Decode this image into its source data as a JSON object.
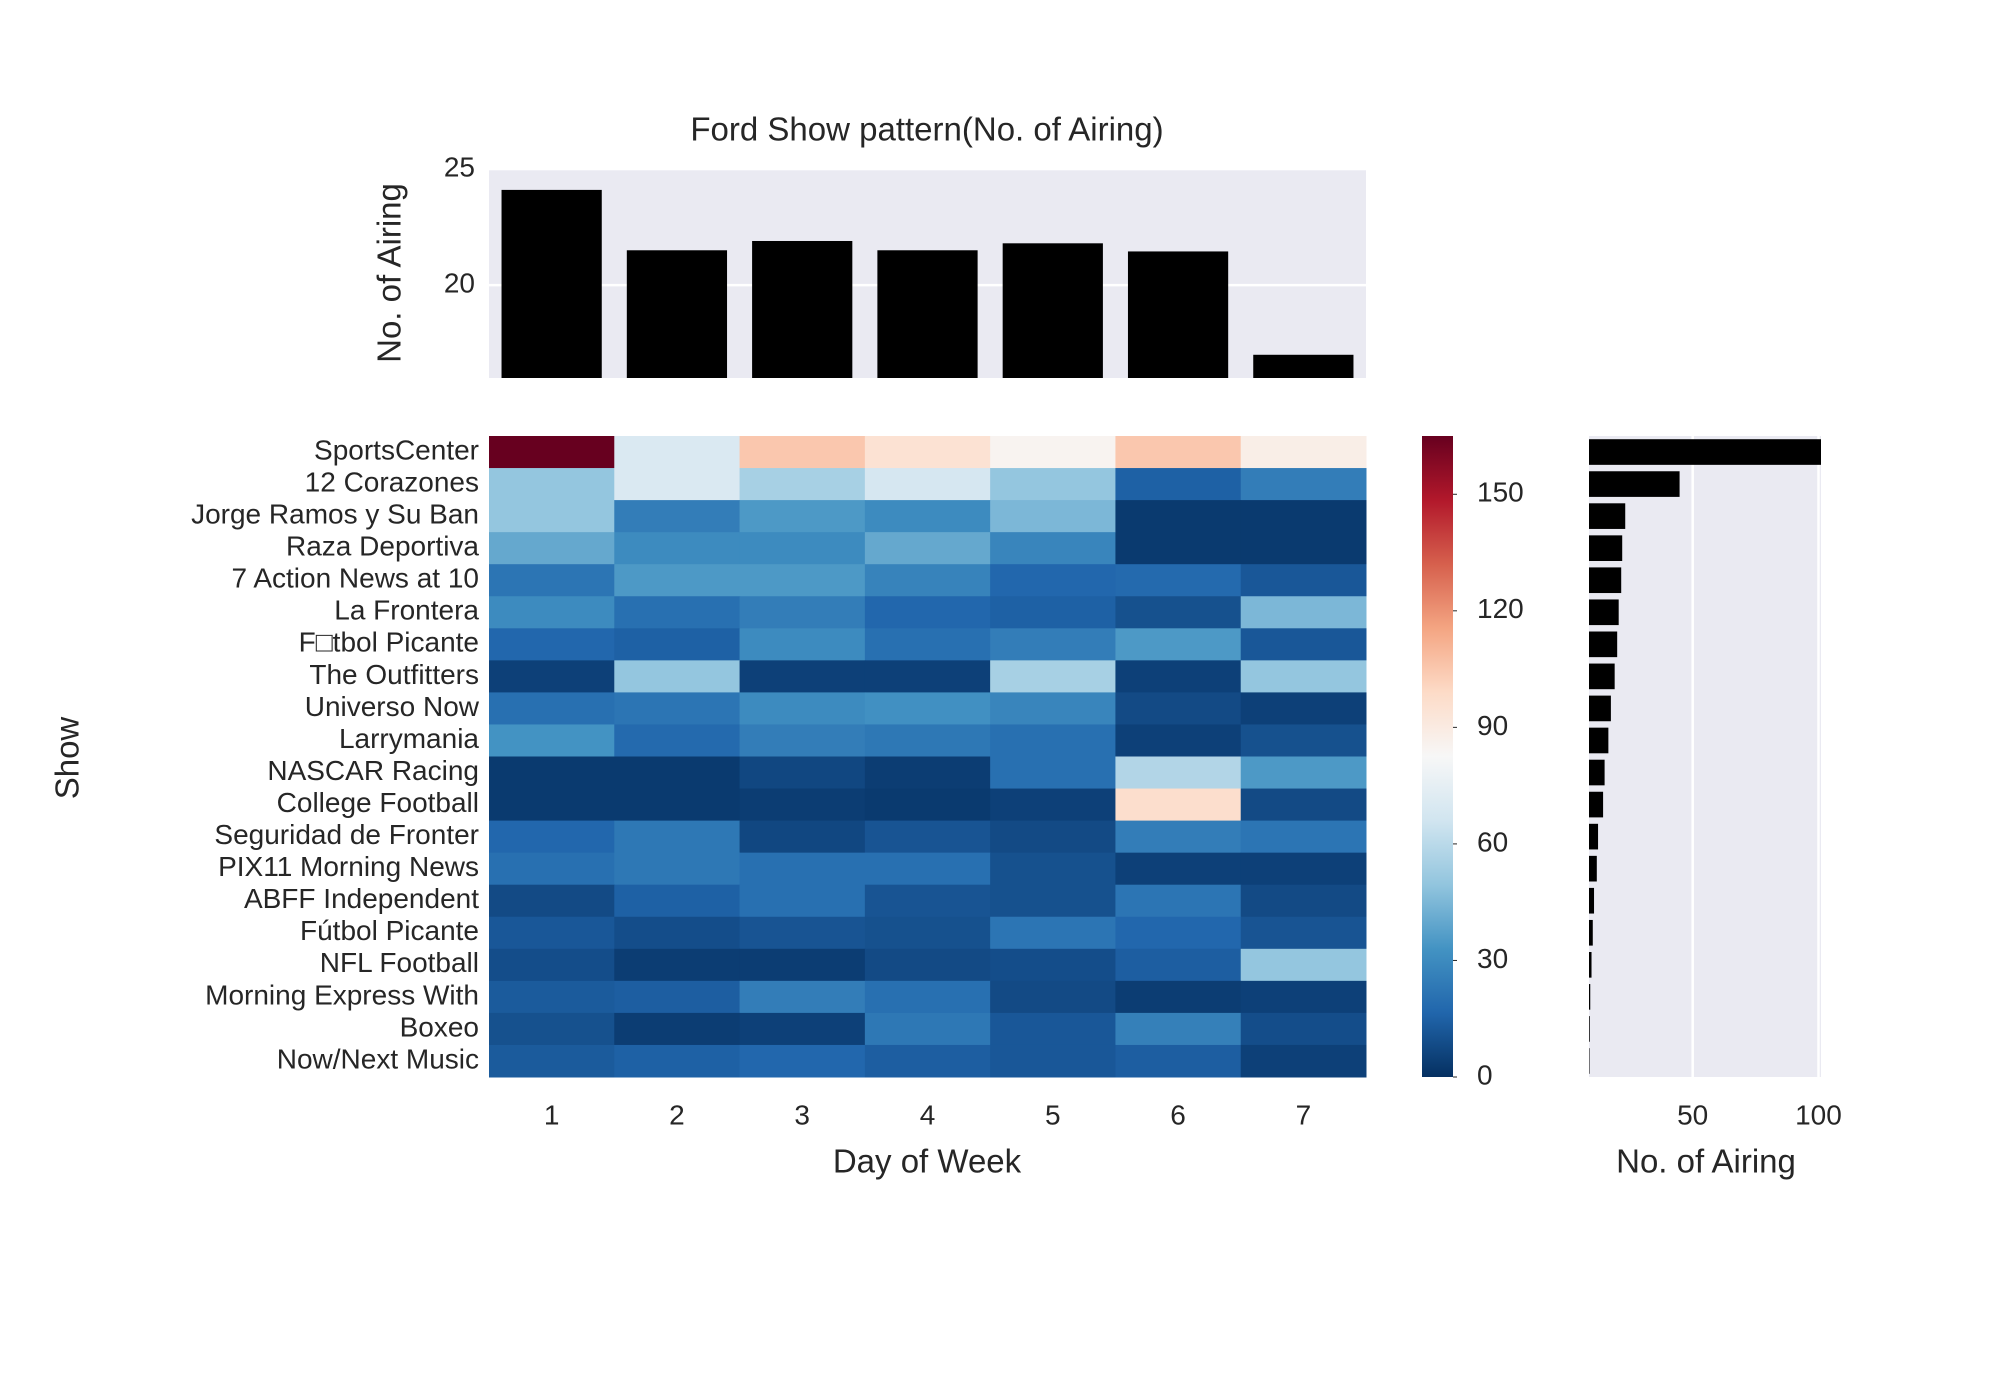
{
  "chart_data": [
    {
      "type": "bar",
      "title": "Ford Show pattern(No. of Airing)",
      "ylabel": "No. of Airing",
      "values": [
        24.1,
        21.5,
        21.9,
        21.5,
        21.8,
        21.45,
        17.0
      ],
      "color": "#000000",
      "ylim": [
        16,
        25
      ],
      "yticks": [
        20,
        25
      ],
      "grid": true
    },
    {
      "type": "heatmap",
      "xlabel": "Day of Week",
      "ylabel": "Show",
      "x": [
        1,
        2,
        3,
        4,
        5,
        6,
        7
      ],
      "y": [
        "SportsCenter",
        "12 Corazones",
        "Jorge Ramos y Su Ban",
        "Raza Deportiva",
        "7 Action News at 10 ",
        "La Frontera",
        "F□tbol Picante",
        "The Outfitters",
        "Universo Now",
        "Larrymania",
        "NASCAR Racing",
        "College Football",
        "Seguridad de Fronter",
        "PIX11 Morning News",
        "ABFF Independent",
        "Fútbol Picante",
        "NFL Football",
        "Morning Express With",
        "Boxeo",
        "Now/Next Music"
      ],
      "values": [
        [
          165,
          70,
          105,
          95,
          85,
          105,
          88
        ],
        [
          50,
          70,
          55,
          68,
          50,
          15,
          25
        ],
        [
          50,
          25,
          35,
          30,
          45,
          3,
          3
        ],
        [
          40,
          30,
          30,
          40,
          28,
          3,
          3
        ],
        [
          22,
          35,
          35,
          27,
          17,
          18,
          12
        ],
        [
          30,
          20,
          25,
          17,
          15,
          10,
          45
        ],
        [
          17,
          15,
          30,
          20,
          25,
          35,
          12
        ],
        [
          5,
          50,
          5,
          5,
          55,
          5,
          50
        ],
        [
          20,
          22,
          30,
          32,
          28,
          8,
          5
        ],
        [
          33,
          18,
          25,
          23,
          20,
          5,
          10
        ],
        [
          3,
          3,
          7,
          4,
          20,
          58,
          35
        ],
        [
          3,
          3,
          4,
          3,
          5,
          97,
          8
        ],
        [
          17,
          23,
          7,
          11,
          8,
          25,
          22
        ],
        [
          20,
          23,
          20,
          20,
          10,
          5,
          5
        ],
        [
          8,
          15,
          20,
          11,
          10,
          22,
          8
        ],
        [
          12,
          9,
          11,
          10,
          22,
          17,
          11
        ],
        [
          9,
          4,
          4,
          8,
          9,
          14,
          50
        ],
        [
          13,
          14,
          25,
          20,
          8,
          4,
          5
        ],
        [
          10,
          4,
          5,
          23,
          12,
          26,
          9
        ],
        [
          13,
          15,
          17,
          14,
          12,
          14,
          5
        ]
      ],
      "colormap": "RdBu_r",
      "clim": [
        0,
        165
      ],
      "cticks": [
        0,
        30,
        60,
        90,
        120,
        150
      ]
    },
    {
      "type": "barh",
      "xlabel": "No. of Airing",
      "values": [
        101,
        44.8,
        23.2,
        22,
        21.6,
        20.6,
        20,
        19,
        17.5,
        16.5,
        15,
        14.4,
        12.4,
        11.9,
        10.8,
        10.3,
        9.8,
        9.3,
        9.1,
        9.0
      ],
      "color": "#000000",
      "xlim": [
        8.8,
        101
      ],
      "xticks": [
        50,
        100
      ],
      "grid": true
    }
  ]
}
